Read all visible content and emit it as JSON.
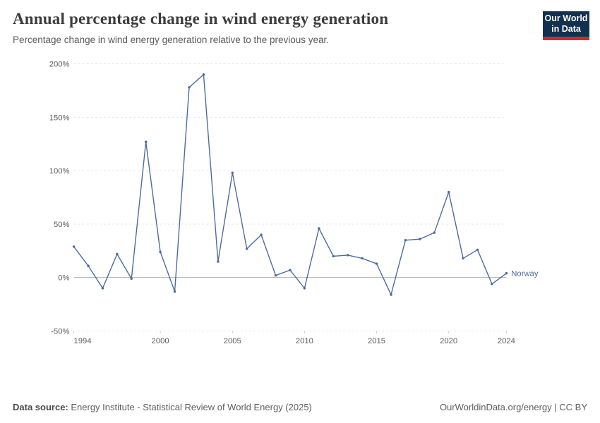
{
  "header": {
    "title": "Annual percentage change in wind energy generation",
    "subtitle": "Percentage change in wind energy generation relative to the previous year.",
    "logo": {
      "line1": "Our World",
      "line2": "in Data"
    }
  },
  "colors": {
    "series_line": "#4d6a9f",
    "logo_background": "#12304f",
    "logo_red_bar": "#cf2d22",
    "gridline": "#dedede",
    "zero_line": "#a5a5a5",
    "tick_text": "#5c5c5c"
  },
  "chart_data": {
    "type": "line",
    "title": "Annual percentage change in wind energy generation",
    "xlabel": "",
    "ylabel": "",
    "unit": "%",
    "grid": "horizontal-dashed",
    "legend_position": "end-of-line-label",
    "xlim": [
      1994,
      2024
    ],
    "ylim": [
      -50,
      200
    ],
    "yticks": [
      {
        "value": 200,
        "label": "200%"
      },
      {
        "value": 150,
        "label": "150%"
      },
      {
        "value": 100,
        "label": "100%"
      },
      {
        "value": 50,
        "label": "50%"
      },
      {
        "value": 0,
        "label": "0%"
      },
      {
        "value": -50,
        "label": "-50%"
      }
    ],
    "xticks": [
      {
        "value": 1994,
        "label": "1994"
      },
      {
        "value": 2000,
        "label": "2000"
      },
      {
        "value": 2005,
        "label": "2005"
      },
      {
        "value": 2010,
        "label": "2010"
      },
      {
        "value": 2015,
        "label": "2015"
      },
      {
        "value": 2020,
        "label": "2020"
      },
      {
        "value": 2024,
        "label": "2024"
      }
    ],
    "series": [
      {
        "name": "Norway",
        "color": "#4d6a9f",
        "x": [
          1994,
          1995,
          1996,
          1997,
          1998,
          1999,
          2000,
          2001,
          2002,
          2003,
          2004,
          2005,
          2006,
          2007,
          2008,
          2009,
          2010,
          2011,
          2012,
          2013,
          2014,
          2015,
          2016,
          2017,
          2018,
          2019,
          2020,
          2021,
          2022,
          2023,
          2024
        ],
        "values": [
          29,
          11,
          -10,
          22,
          -1,
          127,
          24,
          -13,
          178,
          190,
          15,
          98,
          27,
          40,
          2,
          7,
          -10,
          46,
          20,
          21,
          18,
          13,
          -16,
          35,
          36,
          42,
          80,
          18,
          26,
          -6,
          4
        ]
      }
    ]
  },
  "footer": {
    "source_label": "Data source:",
    "source_text": " Energy Institute - Statistical Review of World Energy (2025)",
    "attribution": "OurWorldinData.org/energy | CC BY"
  }
}
